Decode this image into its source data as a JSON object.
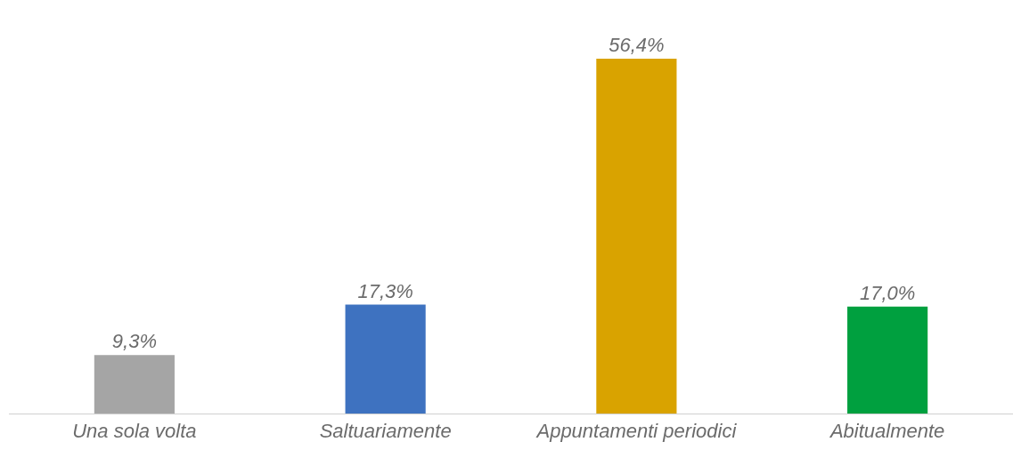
{
  "chart_data": {
    "type": "bar",
    "categories": [
      "Una sola volta",
      "Saltuariamente",
      "Appuntamenti periodici",
      "Abitualmente"
    ],
    "values": [
      9.3,
      17.3,
      56.4,
      17.0
    ],
    "value_labels": [
      "9,3%",
      "17,3%",
      "56,4%",
      "17,0%"
    ],
    "colors": [
      "#a5a5a5",
      "#3e72c0",
      "#d9a300",
      "#00a03f"
    ]
  }
}
